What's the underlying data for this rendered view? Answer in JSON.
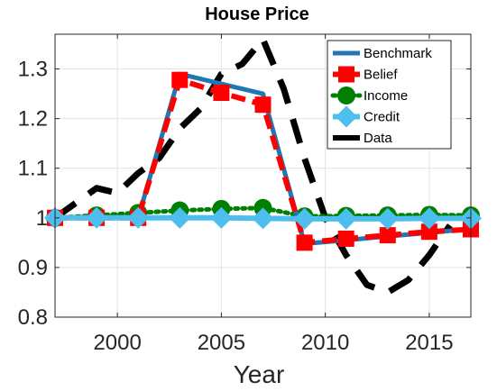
{
  "chart_data": {
    "type": "line",
    "title": "House Price",
    "xlabel": "Year",
    "ylabel": "",
    "xlim": [
      1997,
      2017
    ],
    "ylim": [
      0.8,
      1.37
    ],
    "xticks": [
      2000,
      2005,
      2010,
      2015
    ],
    "xtick_labels": [
      "2000",
      "2005",
      "2010",
      "2015"
    ],
    "yticks": [
      0.8,
      0.9,
      1.0,
      1.1,
      1.2,
      1.3
    ],
    "ytick_labels": [
      "0.8",
      "0.9",
      "1",
      "1.1",
      "1.2",
      "1.3"
    ],
    "grid": true,
    "legend_position": "top-right",
    "series": [
      {
        "name": "Benchmark",
        "color": "#1f77b4",
        "style": "solid",
        "marker": "none",
        "x": [
          1997,
          1999,
          2001,
          2003,
          2005,
          2007,
          2009,
          2011,
          2013,
          2015,
          2017
        ],
        "y": [
          1.0,
          1.0,
          1.0,
          1.29,
          1.27,
          1.25,
          0.948,
          0.955,
          0.963,
          0.97,
          0.978
        ]
      },
      {
        "name": "Belief",
        "color": "#ff0000",
        "style": "dashed",
        "marker": "square",
        "x": [
          1997,
          1999,
          2001,
          2003,
          2005,
          2007,
          2009,
          2011,
          2013,
          2015,
          2017
        ],
        "y": [
          1.0,
          1.0,
          1.0,
          1.278,
          1.252,
          1.228,
          0.95,
          0.958,
          0.965,
          0.972,
          0.977
        ]
      },
      {
        "name": "Income",
        "color": "#008000",
        "style": "dotted",
        "marker": "circle",
        "x": [
          1997,
          1999,
          2001,
          2003,
          2005,
          2007,
          2009,
          2011,
          2013,
          2015,
          2017
        ],
        "y": [
          1.0,
          1.005,
          1.01,
          1.015,
          1.018,
          1.02,
          1.003,
          1.004,
          1.005,
          1.006,
          1.005
        ]
      },
      {
        "name": "Credit",
        "color": "#4dbeee",
        "style": "solid",
        "marker": "diamond",
        "x": [
          1997,
          1999,
          2001,
          2003,
          2005,
          2007,
          2009,
          2011,
          2013,
          2015,
          2017
        ],
        "y": [
          1.0,
          1.0,
          1.0,
          1.0,
          1.0,
          0.999,
          0.998,
          0.998,
          0.998,
          0.999,
          0.999
        ]
      },
      {
        "name": "Data",
        "color": "#000000",
        "style": "dashed",
        "marker": "none",
        "x": [
          1997,
          1998,
          1999,
          2000,
          2001,
          2002,
          2003,
          2004,
          2005,
          2006,
          2007,
          2008,
          2009,
          2010,
          2011,
          2012,
          2013,
          2014,
          2015,
          2016
        ],
        "y": [
          1.0,
          1.03,
          1.06,
          1.05,
          1.09,
          1.12,
          1.18,
          1.22,
          1.29,
          1.31,
          1.36,
          1.26,
          1.12,
          1.0,
          0.925,
          0.865,
          0.85,
          0.875,
          0.925,
          0.985
        ]
      }
    ]
  }
}
